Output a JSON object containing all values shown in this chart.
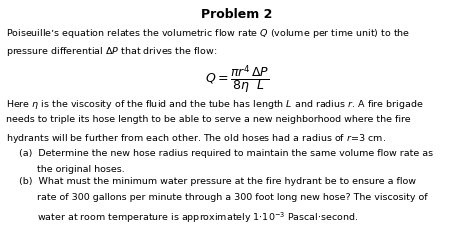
{
  "title": "Problem 2",
  "background_color": "#ffffff",
  "text_color": "#000000",
  "figsize": [
    4.74,
    2.25
  ],
  "dpi": 100,
  "title_fontsize": 9,
  "body_fontsize": 6.8,
  "equation_fontsize": 9,
  "line1": "Poiseuille’s equation relates the volumetric flow rate $Q$ (volume per time unit) to the",
  "line2": "pressure differential $\\Delta P$ that drives the flow:",
  "equation": "$Q = \\dfrac{\\pi r^4}{8\\eta} \\dfrac{\\Delta P}{L}$",
  "line3": "Here $\\eta$ is the viscosity of the fluid and the tube has length $L$ and radius $r$. A fire brigade",
  "line4": "needs to triple its hose length to be able to serve a new neighborhood where the fire",
  "line5": "hydrants will be further from each other. The old hoses had a radius of $r\\!=\\!3$ cm.",
  "line_a1": "(a)  Determine the new hose radius required to maintain the same volume flow rate as",
  "line_a2": "      the original hoses.",
  "line_b1": "(b)  What must the minimum water pressure at the fire hydrant be to ensure a flow",
  "line_b2": "      rate of 300 gallons per minute through a 300 foot long new hose? The viscosity of",
  "line_b3": "      water at room temperature is approximately $1{\\cdot}10^{-3}$ Pascal$\\cdot$second."
}
